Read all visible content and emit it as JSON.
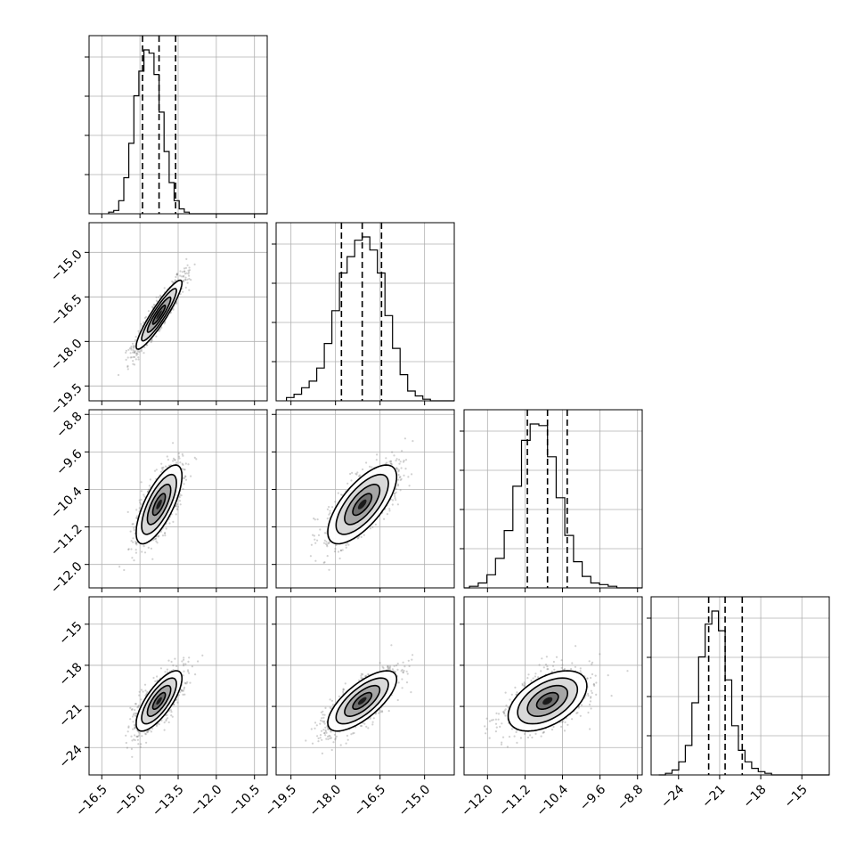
{
  "chart_data": {
    "type": "corner",
    "grid": true,
    "parameters": [
      {
        "range": [
          -17,
          -10
        ],
        "ticks": [
          -16.5,
          -15.0,
          -13.5,
          -12.0,
          -10.5
        ],
        "tick_labels": [
          "−16.5",
          "−15.0",
          "−13.5",
          "−12.0",
          "−10.5"
        ],
        "mean": -14.25,
        "sd": 0.45,
        "quantiles": [
          -14.9,
          -14.25,
          -13.6
        ],
        "hist_bins": [
          0.01,
          0.02,
          0.08,
          0.22,
          0.43,
          0.72,
          0.87,
          1.0,
          0.98,
          0.85,
          0.62,
          0.38,
          0.19,
          0.08,
          0.03,
          0.01,
          0.0,
          0.0,
          0.0,
          0.0
        ]
      },
      {
        "range": [
          -20,
          -14
        ],
        "ticks": [
          -19.5,
          -18.0,
          -16.5,
          -15.0
        ],
        "tick_labels": [
          "−19.5",
          "−18.0",
          "−16.5",
          "−15.0"
        ],
        "mean": -17.1,
        "sd": 0.58,
        "quantiles": [
          -17.8,
          -17.1,
          -16.45
        ],
        "hist_bins": [
          0.02,
          0.04,
          0.08,
          0.12,
          0.2,
          0.35,
          0.55,
          0.78,
          0.88,
          0.98,
          1.0,
          0.92,
          0.78,
          0.52,
          0.32,
          0.16,
          0.06,
          0.03,
          0.01,
          0.0
        ]
      },
      {
        "range": [
          -12.5,
          -8.7
        ],
        "ticks": [
          -12.0,
          -11.2,
          -10.4,
          -9.6,
          -8.8
        ],
        "tick_labels": [
          "−12.0",
          "−11.2",
          "−10.4",
          "−9.6",
          "−8.8"
        ],
        "mean": -10.72,
        "sd": 0.42,
        "quantiles": [
          -11.15,
          -10.72,
          -10.3
        ],
        "hist_bins": [
          0.0,
          0.01,
          0.03,
          0.08,
          0.18,
          0.35,
          0.62,
          0.9,
          1.0,
          0.99,
          0.8,
          0.55,
          0.32,
          0.16,
          0.07,
          0.03,
          0.02,
          0.01,
          0.0,
          0.0
        ]
      },
      {
        "range": [
          -26,
          -13
        ],
        "ticks": [
          -24,
          -21,
          -18,
          -15
        ],
        "tick_labels": [
          "−24",
          "−21",
          "−18",
          "−15"
        ],
        "mean": -20.6,
        "sd": 1.1,
        "quantiles": [
          -21.8,
          -20.6,
          -19.35
        ],
        "hist_bins": [
          0.0,
          0.01,
          0.03,
          0.08,
          0.18,
          0.44,
          0.72,
          0.92,
          1.0,
          0.88,
          0.58,
          0.3,
          0.15,
          0.08,
          0.04,
          0.02,
          0.01,
          0.0,
          0.0,
          0.0
        ]
      }
    ],
    "correlations": {
      "1-0": 0.92,
      "2-0": 0.72,
      "2-1": 0.7,
      "3-0": 0.75,
      "3-1": 0.72,
      "3-2": 0.5
    },
    "quantile_style": "dashed",
    "points_per_panel": 1200
  }
}
